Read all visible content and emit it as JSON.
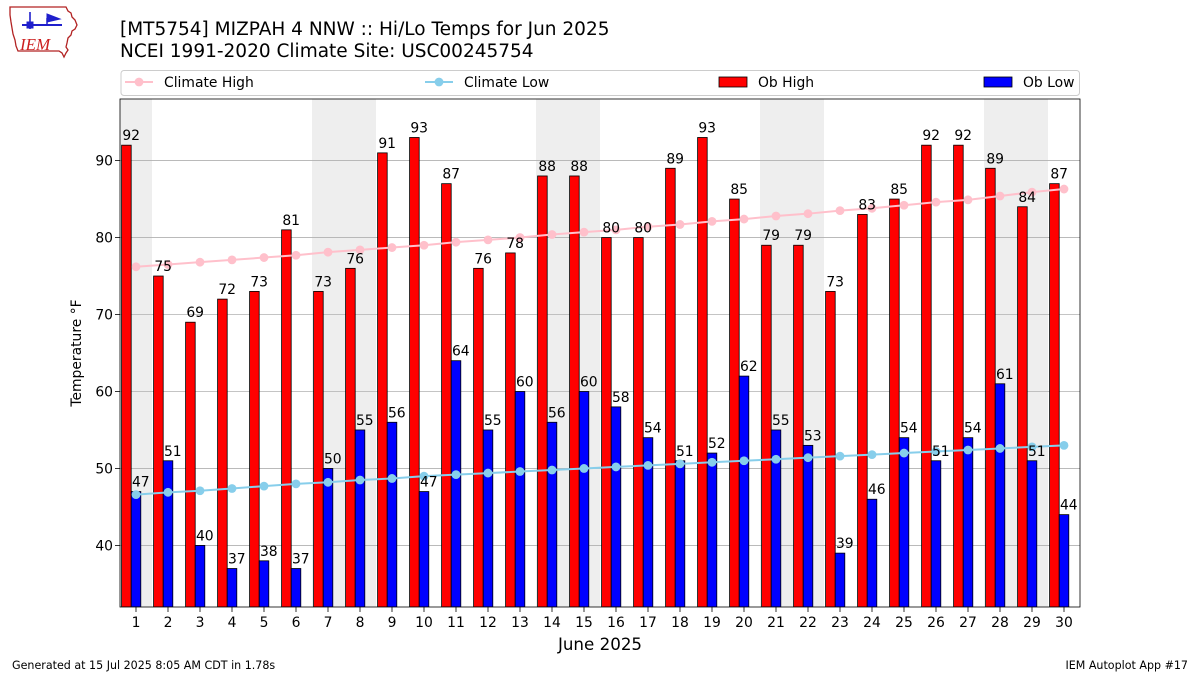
{
  "logo": {
    "text": "IEM"
  },
  "footer": {
    "left": "Generated at 15 Jul 2025 8:05 AM CDT in 1.78s",
    "right": "IEM Autoplot App #17"
  },
  "colors": {
    "shade": "#eeeeee",
    "grid": "#b0b0b0",
    "bar_edge": "#000000"
  },
  "chart_data": {
    "type": "bar",
    "title": "[MT5754] MIZPAH 4 NNW :: Hi/Lo Temps for Jun 2025",
    "subtitle": "NCEI 1991-2020 Climate Site: USC00245754",
    "xlabel": "June 2025",
    "ylabel": "Temperature °F",
    "x": [
      1,
      2,
      3,
      4,
      5,
      6,
      7,
      8,
      9,
      10,
      11,
      12,
      13,
      14,
      15,
      16,
      17,
      18,
      19,
      20,
      21,
      22,
      23,
      24,
      25,
      26,
      27,
      28,
      29,
      30
    ],
    "xlim": [
      0.5,
      30.5
    ],
    "ylim": [
      32,
      98
    ],
    "yticks": [
      40,
      50,
      60,
      70,
      80,
      90
    ],
    "grid": "horizontal",
    "legend_position": "top",
    "shaded_days": [
      1,
      7,
      8,
      14,
      15,
      21,
      22,
      28,
      29
    ],
    "series": [
      {
        "name": "Climate High",
        "type": "line",
        "marker": "circle",
        "color": "#ffc0cb",
        "values": [
          76.2,
          76.5,
          76.8,
          77.1,
          77.4,
          77.7,
          78.1,
          78.4,
          78.7,
          79.0,
          79.4,
          79.7,
          80.0,
          80.4,
          80.7,
          81.0,
          81.4,
          81.7,
          82.1,
          82.4,
          82.8,
          83.1,
          83.5,
          83.8,
          84.2,
          84.6,
          84.9,
          85.4,
          85.9,
          86.3
        ]
      },
      {
        "name": "Climate Low",
        "type": "line",
        "marker": "circle",
        "color": "#87ceeb",
        "values": [
          46.6,
          46.9,
          47.1,
          47.4,
          47.7,
          48.0,
          48.2,
          48.5,
          48.7,
          49.0,
          49.2,
          49.4,
          49.6,
          49.8,
          50.0,
          50.2,
          50.4,
          50.6,
          50.8,
          51.0,
          51.2,
          51.4,
          51.6,
          51.8,
          52.0,
          52.2,
          52.4,
          52.6,
          52.8,
          53.0
        ]
      },
      {
        "name": "Ob High",
        "type": "bar",
        "color": "#ff0000",
        "values": [
          92,
          75,
          69,
          72,
          73,
          81,
          73,
          76,
          91,
          93,
          87,
          76,
          78,
          88,
          88,
          80,
          80,
          89,
          93,
          85,
          79,
          79,
          73,
          83,
          85,
          92,
          92,
          89,
          84,
          87
        ]
      },
      {
        "name": "Ob Low",
        "type": "bar",
        "color": "#0000ff",
        "values": [
          47,
          51,
          40,
          37,
          38,
          37,
          50,
          55,
          56,
          47,
          64,
          55,
          60,
          56,
          60,
          58,
          54,
          51,
          52,
          62,
          55,
          53,
          39,
          46,
          54,
          51,
          54,
          61,
          51,
          44
        ]
      }
    ]
  }
}
